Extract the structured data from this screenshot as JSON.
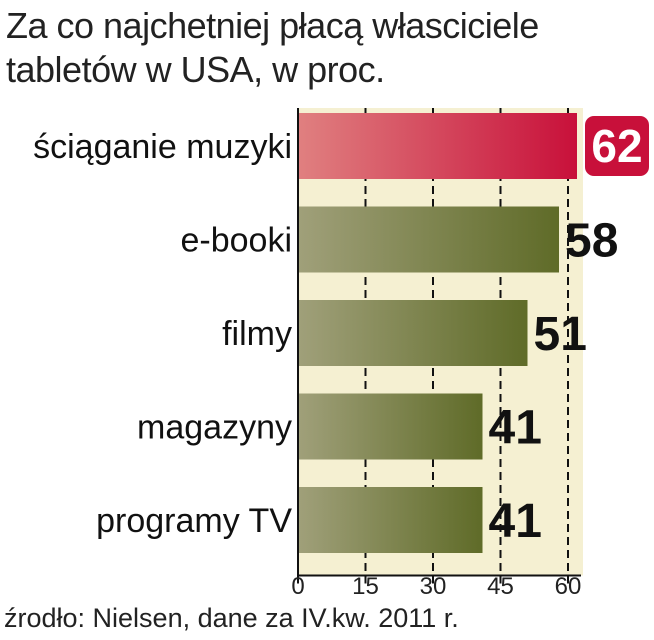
{
  "title_lines": [
    "Za co najchetniej płacą własciciele",
    "tabletów w USA, w proc."
  ],
  "source": "źrodło: Nielsen, dane za IV.kw. 2011 r.",
  "colors": {
    "bar": "#6b7638",
    "bar_light": "#a0a07a",
    "highlight": "#c8103a",
    "highlight_light": "#e08080",
    "band": "#f5f0d2",
    "text": "#111111"
  },
  "chart_data": {
    "type": "bar",
    "orientation": "horizontal",
    "title": "Za co najchetniej płacą własciciele tabletów w USA, w proc.",
    "categories": [
      "ściąganie muzyki",
      "e-booki",
      "filmy",
      "magazyny",
      "programy TV"
    ],
    "values": [
      62,
      58,
      51,
      41,
      41
    ],
    "highlight_index": 0,
    "xlim": [
      0,
      62
    ],
    "xticks": [
      "0",
      "15",
      "30",
      "45",
      "60"
    ],
    "grid": "dashed vertical",
    "unit": "%"
  }
}
